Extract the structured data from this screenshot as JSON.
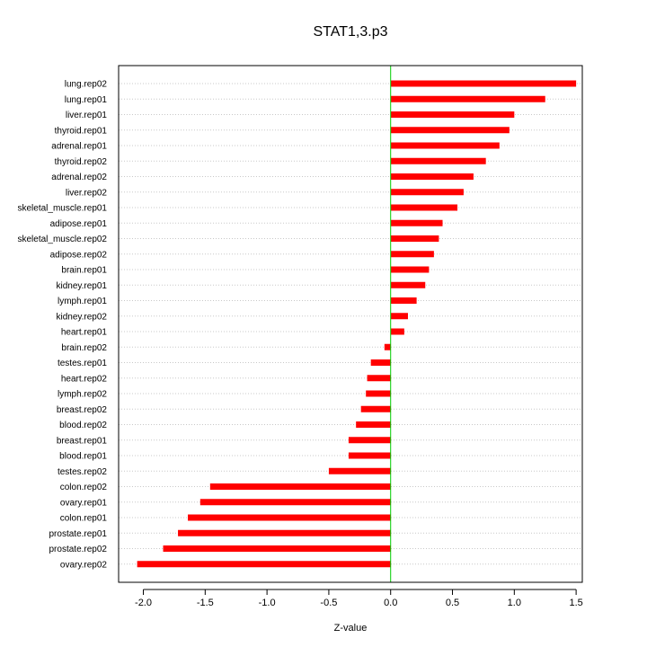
{
  "chart_data": {
    "type": "bar",
    "orientation": "horizontal",
    "title": "STAT1,3.p3",
    "xlabel": "Z-value",
    "ylabel": "",
    "xlim": [
      -2.2,
      1.55
    ],
    "x_ticks": [
      -2.0,
      -1.5,
      -1.0,
      -0.5,
      0.0,
      0.5,
      1.0,
      1.5
    ],
    "x_tick_labels": [
      "-2.0",
      "-1.5",
      "-1.0",
      "-0.5",
      "0.0",
      "0.5",
      "1.0",
      "1.5"
    ],
    "grid": "horizontal-dotted",
    "zero_line_color": "#00cc00",
    "bar_color": "#ff0000",
    "categories": [
      "lung.rep02",
      "lung.rep01",
      "liver.rep01",
      "thyroid.rep01",
      "adrenal.rep01",
      "thyroid.rep02",
      "adrenal.rep02",
      "liver.rep02",
      "skeletal_muscle.rep01",
      "adipose.rep01",
      "skeletal_muscle.rep02",
      "adipose.rep02",
      "brain.rep01",
      "kidney.rep01",
      "lymph.rep01",
      "kidney.rep02",
      "heart.rep01",
      "brain.rep02",
      "testes.rep01",
      "heart.rep02",
      "lymph.rep02",
      "breast.rep02",
      "blood.rep02",
      "breast.rep01",
      "blood.rep01",
      "testes.rep02",
      "colon.rep02",
      "ovary.rep01",
      "colon.rep01",
      "prostate.rep01",
      "prostate.rep02",
      "ovary.rep02"
    ],
    "values": [
      1.5,
      1.25,
      1.0,
      0.96,
      0.88,
      0.77,
      0.67,
      0.59,
      0.54,
      0.42,
      0.39,
      0.35,
      0.31,
      0.28,
      0.21,
      0.14,
      0.11,
      -0.05,
      -0.16,
      -0.19,
      -0.2,
      -0.24,
      -0.28,
      -0.34,
      -0.34,
      -0.5,
      -1.46,
      -1.54,
      -1.64,
      -1.72,
      -1.84,
      -2.05
    ]
  }
}
